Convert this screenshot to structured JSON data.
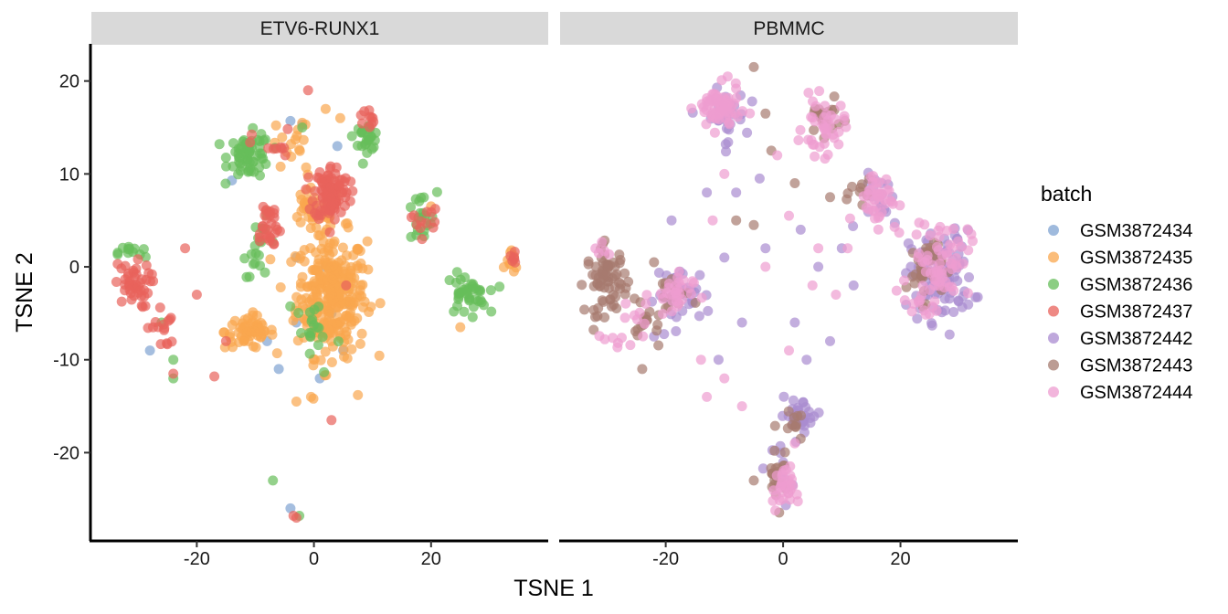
{
  "chart_data": {
    "type": "scatter",
    "facet_var": "",
    "panels": [
      "ETV6-RUNX1",
      "PBMMC"
    ],
    "xlabel": "TSNE 1",
    "ylabel": "TSNE 2",
    "xlim": [
      -38,
      40
    ],
    "ylim": [
      -29.5,
      24
    ],
    "x_ticks": [
      -20,
      0,
      20
    ],
    "y_ticks": [
      20,
      10,
      0,
      -10,
      -20
    ],
    "grid": false,
    "legend": {
      "title": "batch",
      "position": "right",
      "entries": [
        "GSM3872434",
        "GSM3872435",
        "GSM3872436",
        "GSM3872437",
        "GSM3872442",
        "GSM3872443",
        "GSM3872444"
      ],
      "colors": [
        "#7fa3d1",
        "#f9a74e",
        "#66be5a",
        "#e8625b",
        "#a98bd0",
        "#a67b6f",
        "#ee9cd0"
      ]
    },
    "series": [
      {
        "name": "GSM3872434",
        "panel": "ETV6-RUNX1",
        "color": "#7fa3d1",
        "points": [
          [
            -14,
            9.3
          ],
          [
            -4,
            15.7
          ],
          [
            -2,
            15.3
          ],
          [
            4,
            13
          ],
          [
            0,
            -7
          ],
          [
            3,
            -5
          ],
          [
            -3,
            -6
          ],
          [
            5,
            -9
          ],
          [
            -8,
            -8
          ],
          [
            2,
            0
          ],
          [
            -4,
            -26
          ],
          [
            -28,
            -9
          ],
          [
            -3,
            1
          ],
          [
            6,
            -4
          ],
          [
            -6,
            -11
          ],
          [
            1,
            -12
          ]
        ]
      },
      {
        "name": "GSM3872435",
        "panel": "ETV6-RUNX1",
        "color": "#f9a74e",
        "clusters": [
          {
            "center": [
              3,
              -3
            ],
            "spread": [
              5,
              5.5
            ],
            "n": 300
          },
          {
            "center": [
              -11,
              -7
            ],
            "spread": [
              3.5,
              1.5
            ],
            "n": 60
          },
          {
            "center": [
              0,
              6
            ],
            "spread": [
              4,
              2
            ],
            "n": 40
          },
          {
            "center": [
              -4,
              13
            ],
            "spread": [
              3,
              2.5
            ],
            "n": 15
          },
          {
            "center": [
              34,
              0.5
            ],
            "spread": [
              1,
              1
            ],
            "n": 10
          }
        ],
        "points": [
          [
            -3,
            -14.5
          ],
          [
            -0.5,
            -14
          ],
          [
            7.5,
            -13.8
          ],
          [
            20,
            6.5
          ],
          [
            2,
            17
          ],
          [
            4.5,
            16
          ],
          [
            -2,
            15.5
          ],
          [
            25,
            -6.5
          ]
        ]
      },
      {
        "name": "GSM3872436",
        "panel": "ETV6-RUNX1",
        "color": "#66be5a",
        "clusters": [
          {
            "center": [
              -11,
              12
            ],
            "spread": [
              3,
              2
            ],
            "n": 60
          },
          {
            "center": [
              -9,
              2
            ],
            "spread": [
              2.5,
              2.5
            ],
            "n": 20
          },
          {
            "center": [
              9,
              14
            ],
            "spread": [
              1.8,
              1.2
            ],
            "n": 25
          },
          {
            "center": [
              26,
              -3
            ],
            "spread": [
              3,
              1.8
            ],
            "n": 40
          },
          {
            "center": [
              18,
              5
            ],
            "spread": [
              2.5,
              2.5
            ],
            "n": 20
          },
          {
            "center": [
              -31,
              1.5
            ],
            "spread": [
              2,
              0.8
            ],
            "n": 12
          },
          {
            "center": [
              0,
              -7
            ],
            "spread": [
              4,
              4
            ],
            "n": 20
          }
        ],
        "points": [
          [
            -7,
            -23
          ],
          [
            -2.5,
            -26.8
          ],
          [
            -24,
            -10
          ],
          [
            -24,
            -12
          ],
          [
            -26,
            -6
          ],
          [
            -2,
            15
          ]
        ]
      },
      {
        "name": "GSM3872437",
        "panel": "ETV6-RUNX1",
        "color": "#e8625b",
        "clusters": [
          {
            "center": [
              3,
              8
            ],
            "spread": [
              2.5,
              2.5
            ],
            "n": 100
          },
          {
            "center": [
              -8,
              4.5
            ],
            "spread": [
              2,
              2.5
            ],
            "n": 30
          },
          {
            "center": [
              -31,
              -2
            ],
            "spread": [
              2.5,
              2
            ],
            "n": 45
          },
          {
            "center": [
              -26,
              -6.5
            ],
            "spread": [
              2,
              2
            ],
            "n": 15
          },
          {
            "center": [
              9,
              16
            ],
            "spread": [
              1,
              1
            ],
            "n": 10
          },
          {
            "center": [
              19,
              5
            ],
            "spread": [
              2,
              1.5
            ],
            "n": 12
          },
          {
            "center": [
              -7,
              13
            ],
            "spread": [
              3,
              1.5
            ],
            "n": 10
          },
          {
            "center": [
              34,
              1
            ],
            "spread": [
              1,
              1
            ],
            "n": 6
          }
        ],
        "points": [
          [
            -3.5,
            -26.8
          ],
          [
            -3,
            -27
          ],
          [
            -1,
            19
          ],
          [
            -24,
            -11.5
          ],
          [
            -17,
            -11.8
          ],
          [
            3,
            -16.5
          ],
          [
            -20,
            -3
          ],
          [
            -22,
            2
          ],
          [
            5.5,
            -2
          ],
          [
            -15,
            -8
          ]
        ]
      },
      {
        "name": "GSM3872442",
        "panel": "PBMMC",
        "color": "#a98bd0",
        "clusters": [
          {
            "center": [
              27,
              -1
            ],
            "spread": [
              4.5,
              4
            ],
            "n": 110
          },
          {
            "center": [
              -10,
              16
            ],
            "spread": [
              3,
              2.5
            ],
            "n": 30
          },
          {
            "center": [
              3,
              -16
            ],
            "spread": [
              3,
              1.5
            ],
            "n": 30
          },
          {
            "center": [
              -17,
              -3
            ],
            "spread": [
              4,
              2.5
            ],
            "n": 35
          },
          {
            "center": [
              17,
              7
            ],
            "spread": [
              3,
              2.5
            ],
            "n": 20
          },
          {
            "center": [
              0,
              -22
            ],
            "spread": [
              1.5,
              3
            ],
            "n": 10
          }
        ],
        "points": [
          [
            -8,
            8
          ],
          [
            -13,
            8
          ],
          [
            -4,
            9.5
          ],
          [
            -19,
            5
          ],
          [
            3,
            4
          ],
          [
            10,
            2
          ],
          [
            12,
            -2
          ],
          [
            8,
            -8
          ],
          [
            2,
            -6
          ],
          [
            -3,
            2
          ],
          [
            -7,
            -6
          ],
          [
            6,
            0
          ],
          [
            -22,
            -7.5
          ],
          [
            -11,
            -10
          ],
          [
            4,
            -10
          ],
          [
            -10,
            1
          ]
        ]
      },
      {
        "name": "GSM3872443",
        "panel": "PBMMC",
        "color": "#a67b6f",
        "clusters": [
          {
            "center": [
              -30,
              -1.5
            ],
            "spread": [
              3,
              3
            ],
            "n": 70
          },
          {
            "center": [
              24,
              0
            ],
            "spread": [
              2.5,
              3
            ],
            "n": 35
          },
          {
            "center": [
              -23,
              -6.5
            ],
            "spread": [
              2,
              2
            ],
            "n": 15
          },
          {
            "center": [
              -19,
              -3
            ],
            "spread": [
              2.5,
              2
            ],
            "n": 15
          },
          {
            "center": [
              7,
              16
            ],
            "spread": [
              2.5,
              1.5
            ],
            "n": 20
          },
          {
            "center": [
              -1,
              -22
            ],
            "spread": [
              1.5,
              3
            ],
            "n": 20
          },
          {
            "center": [
              2,
              -17
            ],
            "spread": [
              1.5,
              1
            ],
            "n": 10
          },
          {
            "center": [
              14,
              8
            ],
            "spread": [
              2,
              2
            ],
            "n": 10
          }
        ],
        "points": [
          [
            -5,
            21.5
          ],
          [
            -2,
            12.5
          ],
          [
            -3,
            16.5
          ],
          [
            2,
            9
          ],
          [
            -5,
            4.5
          ],
          [
            8,
            7.5
          ],
          [
            -8,
            5
          ],
          [
            -24,
            -11
          ],
          [
            -22,
            0.5
          ],
          [
            -5,
            -23
          ]
        ]
      },
      {
        "name": "GSM3872444",
        "panel": "PBMMC",
        "color": "#ee9cd0",
        "clusters": [
          {
            "center": [
              -11,
              17
            ],
            "spread": [
              3,
              2
            ],
            "n": 70
          },
          {
            "center": [
              7,
              15
            ],
            "spread": [
              3,
              2.5
            ],
            "n": 40
          },
          {
            "center": [
              27,
              1
            ],
            "spread": [
              4,
              3.5
            ],
            "n": 60
          },
          {
            "center": [
              16,
              7.5
            ],
            "spread": [
              3,
              2.5
            ],
            "n": 40
          },
          {
            "center": [
              -19,
              -3
            ],
            "spread": [
              3,
              2
            ],
            "n": 30
          },
          {
            "center": [
              0,
              -24
            ],
            "spread": [
              1.5,
              2
            ],
            "n": 30
          },
          {
            "center": [
              -27,
              -7
            ],
            "spread": [
              3,
              2.5
            ],
            "n": 15
          },
          {
            "center": [
              24,
              -4
            ],
            "spread": [
              3,
              1.5
            ],
            "n": 15
          },
          {
            "center": [
              -31,
              2
            ],
            "spread": [
              1.5,
              0.8
            ],
            "n": 5
          }
        ],
        "points": [
          [
            -10,
            10
          ],
          [
            -12,
            5
          ],
          [
            1,
            5.5
          ],
          [
            6,
            2
          ],
          [
            -3,
            0
          ],
          [
            -10,
            -12
          ],
          [
            -13,
            -14
          ],
          [
            -7,
            -15
          ],
          [
            1,
            -9
          ],
          [
            2,
            -19
          ],
          [
            -1,
            12
          ],
          [
            11,
            2
          ],
          [
            5,
            -2
          ],
          [
            -14,
            -10
          ],
          [
            9,
            -3
          ]
        ]
      }
    ]
  }
}
